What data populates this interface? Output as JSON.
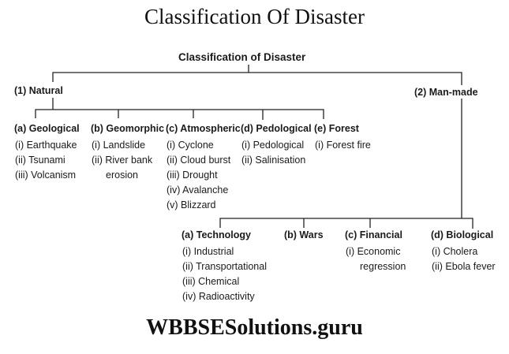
{
  "title": "Classification Of Disaster",
  "root": "Classification of Disaster",
  "natural": {
    "label": "(1) Natural",
    "categories": [
      {
        "label": "(a) Geological",
        "items": [
          "(i) Earthquake",
          "(ii) Tsunami",
          "(iii) Volcanism"
        ]
      },
      {
        "label": "(b) Geomorphic",
        "items": [
          "(i) Landslide",
          "(ii) River bank",
          "erosion"
        ]
      },
      {
        "label": "(c) Atmospheric",
        "items": [
          "(i) Cyclone",
          "(ii) Cloud burst",
          "(iii) Drought",
          "(iv) Avalanche",
          "(v) Blizzard"
        ]
      },
      {
        "label": "(d) Pedological",
        "items": [
          "(i) Pedological",
          "(ii) Salinisation"
        ]
      },
      {
        "label": "(e) Forest",
        "items": [
          "(i) Forest fire"
        ]
      }
    ]
  },
  "manmade": {
    "label": "(2) Man-made",
    "categories": [
      {
        "label": "(a) Technology",
        "items": [
          "(i) Industrial",
          "(ii) Transportational",
          "(iii) Chemical",
          "(iv) Radioactivity"
        ]
      },
      {
        "label": "(b) Wars",
        "items": []
      },
      {
        "label": "(c) Financial",
        "items": [
          "(i) Economic",
          "regression"
        ]
      },
      {
        "label": "(d) Biological",
        "items": [
          "(i) Cholera",
          "(ii) Ebola fever"
        ]
      }
    ]
  },
  "footer": "WBBSESolutions.guru"
}
